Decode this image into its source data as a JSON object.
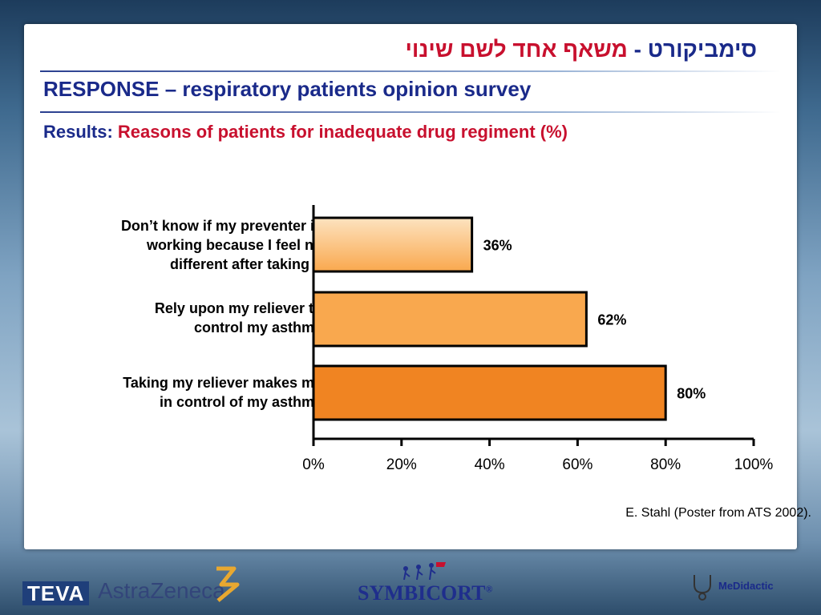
{
  "header": {
    "hebrew_title_part1": "סימביקורט -",
    "hebrew_title_part2": "משאף אחד לשם שינוי",
    "title": "RESPONSE – respiratory patients opinion survey",
    "subtitle_label": "Results:",
    "subtitle_text": "Reasons of patients for inadequate drug regiment (%)"
  },
  "chart_data": {
    "type": "bar",
    "orientation": "horizontal",
    "categories": [
      "Don’t know if my preventer is working because I feel  no different after taking it",
      "Rely upon my reliever to control my asthma",
      "Taking my reliever makes me in control of my asthma"
    ],
    "category_lines": [
      [
        "Don’t know if my preventer is",
        "working because I feel  no",
        "different after taking it"
      ],
      [
        "Rely upon my reliever to",
        "control my asthma"
      ],
      [
        "Taking my reliever makes me",
        "in control of my asthma"
      ]
    ],
    "values": [
      36,
      62,
      80
    ],
    "data_labels": [
      "36%",
      "62%",
      "80%"
    ],
    "xlim": [
      0,
      100
    ],
    "xticks": [
      0,
      20,
      40,
      60,
      80,
      100
    ],
    "xtick_labels": [
      "0%",
      "20%",
      "40%",
      "60%",
      "80%",
      "100%"
    ],
    "grid": false,
    "legend": "none",
    "colors": {
      "bar_light": "#fde3c0",
      "bar_mid": "#f9a84e",
      "bar_dark": "#f08422",
      "outline": "#000000"
    }
  },
  "source": "E. Stahl (Poster from ATS 2002).",
  "logos": {
    "teva": "TEVA",
    "astrazeneca": "AstraZeneca",
    "symbicort": "SYMBICORT",
    "symbicort_mark": "®",
    "medidactic": "MeDidactic"
  }
}
